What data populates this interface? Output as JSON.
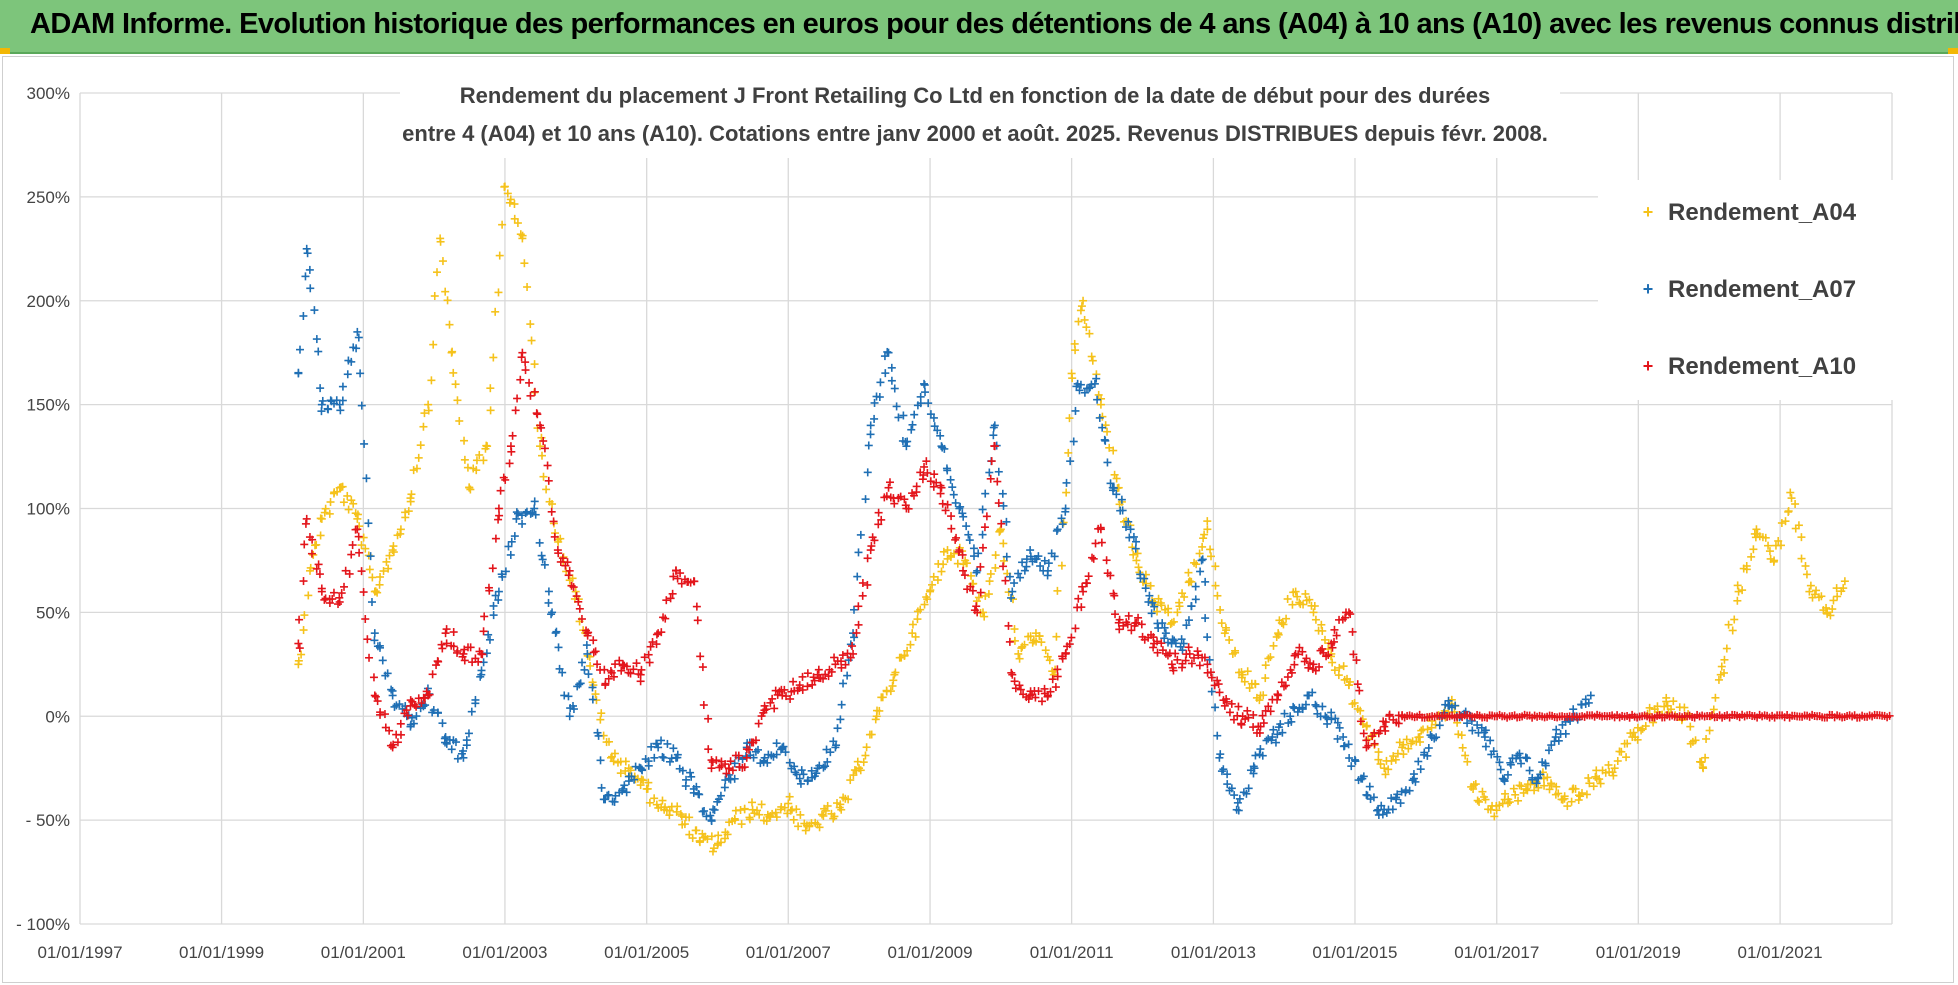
{
  "banner": {
    "title": "ADAM Informe. Evolution historique des performances en euros pour des détentions de 4 ans (A04) à 10 ans (A10) avec les revenus connus distribués"
  },
  "colors": {
    "banner": "#7dc57b",
    "A04": "#f5c21b",
    "A07": "#1f6fb4",
    "A10": "#e3151b",
    "grid": "#d9d9d9"
  },
  "chart_data": {
    "type": "scatter",
    "title_lines": [
      "Rendement du placement J Front Retailing Co Ltd en fonction de la date de début pour des durées",
      "entre 4 (A04) et 10 ans (A10).  Cotations entre janv 2000 et août. 2025. Revenus DISTRIBUES depuis févr. 2008."
    ],
    "x_tick_labels": [
      "01/01/1997",
      "01/01/1999",
      "01/01/2001",
      "01/01/2003",
      "01/01/2005",
      "01/01/2007",
      "01/01/2009",
      "01/01/2011",
      "01/01/2013",
      "01/01/2015",
      "01/01/2017",
      "01/01/2019",
      "01/01/2021"
    ],
    "y_tick_labels": [
      "300%",
      "250%",
      "200%",
      "150%",
      "100%",
      "50%",
      "0%",
      "- 50%",
      "- 100%"
    ],
    "xlim": [
      "1997-01-01",
      "2022-08-01"
    ],
    "ylim": [
      -100,
      300
    ],
    "grid": true,
    "legend_position": "top-right",
    "marker": "+",
    "series": [
      {
        "name": "Rendement_A04",
        "color": "#f5c21b",
        "points": [
          [
            "2000-02-01",
            25
          ],
          [
            "2000-04-01",
            70
          ],
          [
            "2000-06-01",
            95
          ],
          [
            "2000-09-01",
            110
          ],
          [
            "2000-12-01",
            95
          ],
          [
            "2001-03-01",
            60
          ],
          [
            "2001-06-01",
            80
          ],
          [
            "2001-09-01",
            105
          ],
          [
            "2001-12-01",
            150
          ],
          [
            "2002-02-01",
            230
          ],
          [
            "2002-04-01",
            175
          ],
          [
            "2002-07-01",
            110
          ],
          [
            "2002-10-01",
            130
          ],
          [
            "2003-01-01",
            255
          ],
          [
            "2003-04-01",
            230
          ],
          [
            "2003-07-01",
            130
          ],
          [
            "2003-10-01",
            85
          ],
          [
            "2004-01-01",
            60
          ],
          [
            "2004-04-01",
            15
          ],
          [
            "2004-07-01",
            -20
          ],
          [
            "2004-10-01",
            -25
          ],
          [
            "2005-01-01",
            -35
          ],
          [
            "2005-04-01",
            -45
          ],
          [
            "2005-07-01",
            -48
          ],
          [
            "2005-10-01",
            -60
          ],
          [
            "2006-01-01",
            -62
          ],
          [
            "2006-04-01",
            -50
          ],
          [
            "2006-07-01",
            -45
          ],
          [
            "2006-10-01",
            -48
          ],
          [
            "2007-01-01",
            -42
          ],
          [
            "2007-04-01",
            -55
          ],
          [
            "2007-07-01",
            -48
          ],
          [
            "2007-10-01",
            -45
          ],
          [
            "2008-01-01",
            -25
          ],
          [
            "2008-04-01",
            0
          ],
          [
            "2008-07-01",
            20
          ],
          [
            "2008-10-01",
            40
          ],
          [
            "2009-01-01",
            60
          ],
          [
            "2009-04-01",
            80
          ],
          [
            "2009-07-01",
            75
          ],
          [
            "2009-10-01",
            50
          ],
          [
            "2010-01-01",
            90
          ],
          [
            "2010-04-01",
            30
          ],
          [
            "2010-07-01",
            40
          ],
          [
            "2010-10-01",
            20
          ],
          [
            "2011-01-01",
            165
          ],
          [
            "2011-03-01",
            200
          ],
          [
            "2011-06-01",
            150
          ],
          [
            "2011-09-01",
            110
          ],
          [
            "2011-12-01",
            75
          ],
          [
            "2012-03-01",
            55
          ],
          [
            "2012-06-01",
            45
          ],
          [
            "2012-09-01",
            65
          ],
          [
            "2012-12-01",
            90
          ],
          [
            "2013-03-01",
            40
          ],
          [
            "2013-06-01",
            20
          ],
          [
            "2013-09-01",
            10
          ],
          [
            "2013-12-01",
            40
          ],
          [
            "2014-03-01",
            60
          ],
          [
            "2014-06-01",
            50
          ],
          [
            "2014-09-01",
            30
          ],
          [
            "2014-12-01",
            15
          ],
          [
            "2015-03-01",
            -5
          ],
          [
            "2015-06-01",
            -25
          ],
          [
            "2015-09-01",
            -15
          ],
          [
            "2015-12-01",
            -10
          ],
          [
            "2016-03-01",
            0
          ],
          [
            "2016-06-01",
            5
          ],
          [
            "2016-09-01",
            -35
          ],
          [
            "2016-12-01",
            -45
          ],
          [
            "2017-03-01",
            -40
          ],
          [
            "2017-06-01",
            -35
          ],
          [
            "2017-09-01",
            -30
          ],
          [
            "2017-12-01",
            -40
          ],
          [
            "2018-03-01",
            -38
          ],
          [
            "2018-06-01",
            -30
          ],
          [
            "2018-09-01",
            -25
          ],
          [
            "2018-12-01",
            -10
          ],
          [
            "2019-03-01",
            0
          ],
          [
            "2019-06-01",
            5
          ],
          [
            "2019-09-01",
            0
          ],
          [
            "2019-12-01",
            -25
          ],
          [
            "2020-03-01",
            20
          ],
          [
            "2020-06-01",
            60
          ],
          [
            "2020-09-01",
            90
          ],
          [
            "2020-12-01",
            75
          ],
          [
            "2021-03-01",
            105
          ],
          [
            "2021-06-01",
            60
          ],
          [
            "2021-09-01",
            50
          ],
          [
            "2021-12-01",
            65
          ]
        ]
      },
      {
        "name": "Rendement_A07",
        "color": "#1f6fb4",
        "points": [
          [
            "2000-02-01",
            165
          ],
          [
            "2000-03-15",
            225
          ],
          [
            "2000-06-01",
            150
          ],
          [
            "2000-09-01",
            150
          ],
          [
            "2000-12-01",
            185
          ],
          [
            "2001-03-01",
            40
          ],
          [
            "2001-06-01",
            10
          ],
          [
            "2001-09-01",
            -5
          ],
          [
            "2001-12-01",
            10
          ],
          [
            "2002-03-01",
            -10
          ],
          [
            "2002-06-01",
            -20
          ],
          [
            "2002-09-01",
            20
          ],
          [
            "2002-12-01",
            60
          ],
          [
            "2003-03-01",
            95
          ],
          [
            "2003-06-01",
            100
          ],
          [
            "2003-09-01",
            50
          ],
          [
            "2003-12-01",
            0
          ],
          [
            "2004-03-01",
            30
          ],
          [
            "2004-06-01",
            -40
          ],
          [
            "2004-09-01",
            -35
          ],
          [
            "2004-12-01",
            -25
          ],
          [
            "2005-03-01",
            -15
          ],
          [
            "2005-06-01",
            -20
          ],
          [
            "2005-09-01",
            -35
          ],
          [
            "2005-12-01",
            -50
          ],
          [
            "2006-03-01",
            -30
          ],
          [
            "2006-06-01",
            -15
          ],
          [
            "2006-09-01",
            -20
          ],
          [
            "2006-12-01",
            -15
          ],
          [
            "2007-03-01",
            -30
          ],
          [
            "2007-06-01",
            -25
          ],
          [
            "2007-09-01",
            -15
          ],
          [
            "2007-12-01",
            40
          ],
          [
            "2008-03-01",
            140
          ],
          [
            "2008-06-01",
            175
          ],
          [
            "2008-09-01",
            130
          ],
          [
            "2008-12-01",
            160
          ],
          [
            "2009-03-01",
            130
          ],
          [
            "2009-06-01",
            100
          ],
          [
            "2009-09-01",
            70
          ],
          [
            "2009-12-01",
            140
          ],
          [
            "2010-03-01",
            60
          ],
          [
            "2010-06-01",
            80
          ],
          [
            "2010-09-01",
            70
          ],
          [
            "2010-12-01",
            100
          ],
          [
            "2011-02-01",
            160
          ],
          [
            "2011-05-01",
            160
          ],
          [
            "2011-08-01",
            110
          ],
          [
            "2011-11-01",
            90
          ],
          [
            "2012-02-01",
            55
          ],
          [
            "2012-05-01",
            40
          ],
          [
            "2012-08-01",
            35
          ],
          [
            "2012-11-01",
            75
          ],
          [
            "2013-02-01",
            -20
          ],
          [
            "2013-05-01",
            -45
          ],
          [
            "2013-08-01",
            -25
          ],
          [
            "2013-11-01",
            -10
          ],
          [
            "2014-02-01",
            0
          ],
          [
            "2014-05-01",
            10
          ],
          [
            "2014-08-01",
            0
          ],
          [
            "2014-11-01",
            -10
          ],
          [
            "2015-02-01",
            -30
          ],
          [
            "2015-05-01",
            -45
          ],
          [
            "2015-08-01",
            -40
          ],
          [
            "2015-11-01",
            -30
          ],
          [
            "2016-02-01",
            -10
          ],
          [
            "2016-05-01",
            5
          ],
          [
            "2016-08-01",
            0
          ],
          [
            "2016-11-01",
            -10
          ],
          [
            "2017-02-01",
            -30
          ],
          [
            "2017-05-01",
            -20
          ],
          [
            "2017-08-01",
            -30
          ],
          [
            "2017-11-01",
            -10
          ],
          [
            "2018-02-01",
            0
          ],
          [
            "2018-05-01",
            10
          ]
        ]
      },
      {
        "name": "Rendement_A10",
        "color": "#e3151b",
        "points": [
          [
            "2000-02-01",
            35
          ],
          [
            "2000-03-15",
            95
          ],
          [
            "2000-06-01",
            60
          ],
          [
            "2000-09-01",
            55
          ],
          [
            "2000-12-01",
            90
          ],
          [
            "2001-03-01",
            10
          ],
          [
            "2001-06-01",
            -15
          ],
          [
            "2001-09-01",
            5
          ],
          [
            "2001-12-01",
            10
          ],
          [
            "2002-03-01",
            40
          ],
          [
            "2002-06-01",
            30
          ],
          [
            "2002-09-01",
            30
          ],
          [
            "2002-12-01",
            100
          ],
          [
            "2003-02-01",
            130
          ],
          [
            "2003-04-01",
            175
          ],
          [
            "2003-07-01",
            140
          ],
          [
            "2003-10-01",
            80
          ],
          [
            "2003-12-01",
            70
          ],
          [
            "2004-03-01",
            40
          ],
          [
            "2004-06-01",
            15
          ],
          [
            "2004-09-01",
            25
          ],
          [
            "2004-12-01",
            20
          ],
          [
            "2005-03-01",
            40
          ],
          [
            "2005-06-01",
            70
          ],
          [
            "2005-09-01",
            65
          ],
          [
            "2005-12-01",
            -25
          ],
          [
            "2006-03-01",
            -25
          ],
          [
            "2006-06-01",
            -20
          ],
          [
            "2006-09-01",
            5
          ],
          [
            "2006-12-01",
            10
          ],
          [
            "2007-03-01",
            15
          ],
          [
            "2007-06-01",
            20
          ],
          [
            "2007-09-01",
            25
          ],
          [
            "2007-12-01",
            30
          ],
          [
            "2008-03-01",
            80
          ],
          [
            "2008-06-01",
            110
          ],
          [
            "2008-09-01",
            100
          ],
          [
            "2008-12-01",
            120
          ],
          [
            "2009-03-01",
            110
          ],
          [
            "2009-06-01",
            80
          ],
          [
            "2009-09-01",
            50
          ],
          [
            "2009-12-01",
            130
          ],
          [
            "2010-03-01",
            20
          ],
          [
            "2010-06-01",
            10
          ],
          [
            "2010-09-01",
            10
          ],
          [
            "2010-12-01",
            30
          ],
          [
            "2011-03-01",
            60
          ],
          [
            "2011-06-01",
            90
          ],
          [
            "2011-09-01",
            45
          ],
          [
            "2011-12-01",
            45
          ],
          [
            "2012-03-01",
            35
          ],
          [
            "2012-06-01",
            25
          ],
          [
            "2012-09-01",
            30
          ],
          [
            "2012-12-01",
            25
          ],
          [
            "2013-03-01",
            5
          ],
          [
            "2013-06-01",
            0
          ],
          [
            "2013-09-01",
            -5
          ],
          [
            "2013-12-01",
            10
          ],
          [
            "2014-03-01",
            30
          ],
          [
            "2014-06-01",
            25
          ],
          [
            "2014-09-01",
            35
          ],
          [
            "2014-12-01",
            50
          ],
          [
            "2015-03-01",
            -15
          ],
          [
            "2015-06-01",
            -5
          ],
          [
            "2015-09-01",
            0
          ]
        ],
        "flat_segment": {
          "from": "2015-09-01",
          "to": "2022-08-01",
          "value": 0
        }
      }
    ]
  }
}
